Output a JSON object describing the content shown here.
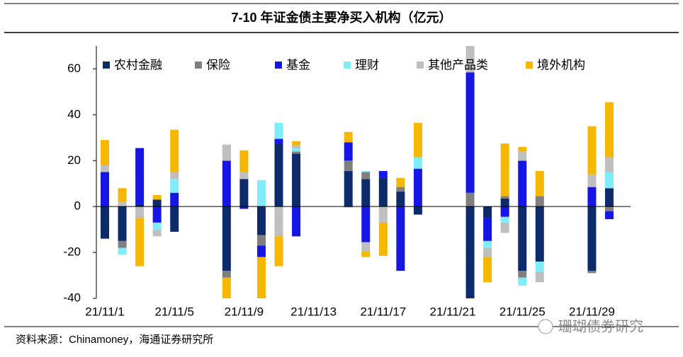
{
  "chart_data": {
    "type": "stacked_bar",
    "title": "7-10 年证金债主要净买入机构（亿元）",
    "categories": [
      "21/11/1",
      null,
      null,
      null,
      "21/11/5",
      null,
      null,
      null,
      "21/11/9",
      null,
      null,
      null,
      "21/11/13",
      null,
      null,
      null,
      "21/11/17",
      null,
      null,
      null,
      "21/11/21",
      null,
      null,
      null,
      "21/11/25",
      null,
      null,
      null,
      "21/11/29",
      null
    ],
    "series": [
      {
        "name": "农村金融",
        "color": "#0d2a6b",
        "values": [
          -14,
          -15,
          1,
          3,
          -11,
          null,
          null,
          -28,
          12,
          -12.5,
          27.5,
          23,
          null,
          null,
          15.5,
          12,
          12.5,
          6.5,
          -3.5,
          null,
          null,
          -41,
          -5,
          3.5,
          -28,
          -24,
          null,
          null,
          -28,
          8
        ]
      },
      {
        "name": "保险",
        "color": "#7f7f7f",
        "values": [
          0,
          -3,
          0,
          0,
          0,
          null,
          null,
          -3,
          0,
          -4.5,
          0,
          1,
          null,
          null,
          4.5,
          3,
          0,
          2,
          0,
          null,
          null,
          6,
          0,
          1,
          -3,
          4.5,
          null,
          null,
          -1,
          -2
        ]
      },
      {
        "name": "基金",
        "color": "#1515e6",
        "values": [
          15,
          0,
          24.5,
          -7,
          6,
          null,
          null,
          20,
          -1,
          -5,
          2,
          -13,
          null,
          null,
          8,
          -15.5,
          3,
          -28,
          16.5,
          null,
          null,
          52.5,
          -10,
          -4.5,
          20,
          0,
          null,
          null,
          8.5,
          -3.5
        ]
      },
      {
        "name": "理财",
        "color": "#7fedf7",
        "values": [
          0,
          -3,
          0,
          -3,
          6,
          null,
          null,
          0,
          0,
          11.5,
          7,
          1.5,
          null,
          null,
          0,
          0.5,
          0,
          0,
          5,
          null,
          null,
          0,
          -3,
          -2.5,
          -3.5,
          -4.5,
          null,
          null,
          0,
          7
        ]
      },
      {
        "name": "其他产品类",
        "color": "#bfbfbf",
        "values": [
          3,
          2,
          -5,
          -3,
          3,
          null,
          null,
          7,
          3,
          0,
          -13,
          1,
          null,
          null,
          -0.5,
          -4,
          -7,
          0,
          0,
          null,
          null,
          12,
          -4,
          -4.5,
          4,
          -4.5,
          null,
          null,
          5.5,
          6.5
        ]
      },
      {
        "name": "境外机构",
        "color": "#f5b700",
        "values": [
          11,
          6,
          -21,
          2,
          18.5,
          null,
          null,
          -9,
          9.5,
          -19,
          -13,
          2,
          null,
          null,
          4.5,
          -2.5,
          -14.5,
          4,
          15,
          null,
          null,
          0,
          -11,
          23,
          2,
          11,
          null,
          null,
          21,
          24
        ]
      }
    ],
    "ylim": [
      -40,
      70
    ],
    "yticks": [
      -40,
      -20,
      0,
      20,
      40,
      60
    ],
    "source": "资料来源：Chinamoney，海通证券研究所",
    "watermark": "珊瑚债券研究"
  }
}
